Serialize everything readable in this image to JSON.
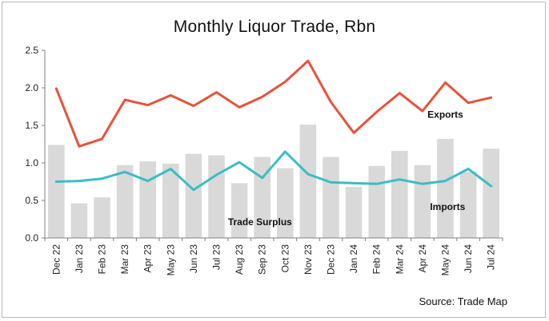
{
  "chart_data": {
    "type": "bar",
    "title": "Monthly Liquor Trade, Rbn",
    "source": "Source: Trade Map",
    "xlabel": "",
    "ylabel": "",
    "ylim": [
      0,
      2.5
    ],
    "yticks": [
      "0.0",
      "0.5",
      "1.0",
      "1.5",
      "2.0",
      "2.5"
    ],
    "grid": false,
    "categories": [
      "Dec 22",
      "Jan 23",
      "Feb 23",
      "Mar 23",
      "Apr 23",
      "May 23",
      "Jun 23",
      "Jul 23",
      "Aug 23",
      "Sep 23",
      "Oct 23",
      "Nov 23",
      "Dec 23",
      "Jan 24",
      "Feb 24",
      "Mar 24",
      "Apr 24",
      "May 24",
      "Jun 24",
      "Jul 24"
    ],
    "series": [
      {
        "name": "Trade Surplus",
        "kind": "bar",
        "color": "#d9d9d9",
        "values": [
          1.24,
          0.46,
          0.54,
          0.97,
          1.02,
          0.99,
          1.12,
          1.1,
          0.73,
          1.08,
          0.93,
          1.51,
          1.08,
          0.68,
          0.96,
          1.16,
          0.97,
          1.32,
          0.88,
          1.19
        ]
      },
      {
        "name": "Exports",
        "kind": "line",
        "color": "#e8533a",
        "values": [
          1.99,
          1.22,
          1.32,
          1.84,
          1.77,
          1.9,
          1.76,
          1.94,
          1.74,
          1.88,
          2.08,
          2.36,
          1.81,
          1.4,
          1.68,
          1.93,
          1.69,
          2.07,
          1.8,
          1.87
        ]
      },
      {
        "name": "Imports",
        "kind": "line",
        "color": "#3cbcc4",
        "values": [
          0.75,
          0.76,
          0.79,
          0.88,
          0.76,
          0.92,
          0.64,
          0.84,
          1.01,
          0.8,
          1.15,
          0.85,
          0.74,
          0.73,
          0.72,
          0.78,
          0.72,
          0.76,
          0.92,
          0.69
        ]
      }
    ]
  }
}
